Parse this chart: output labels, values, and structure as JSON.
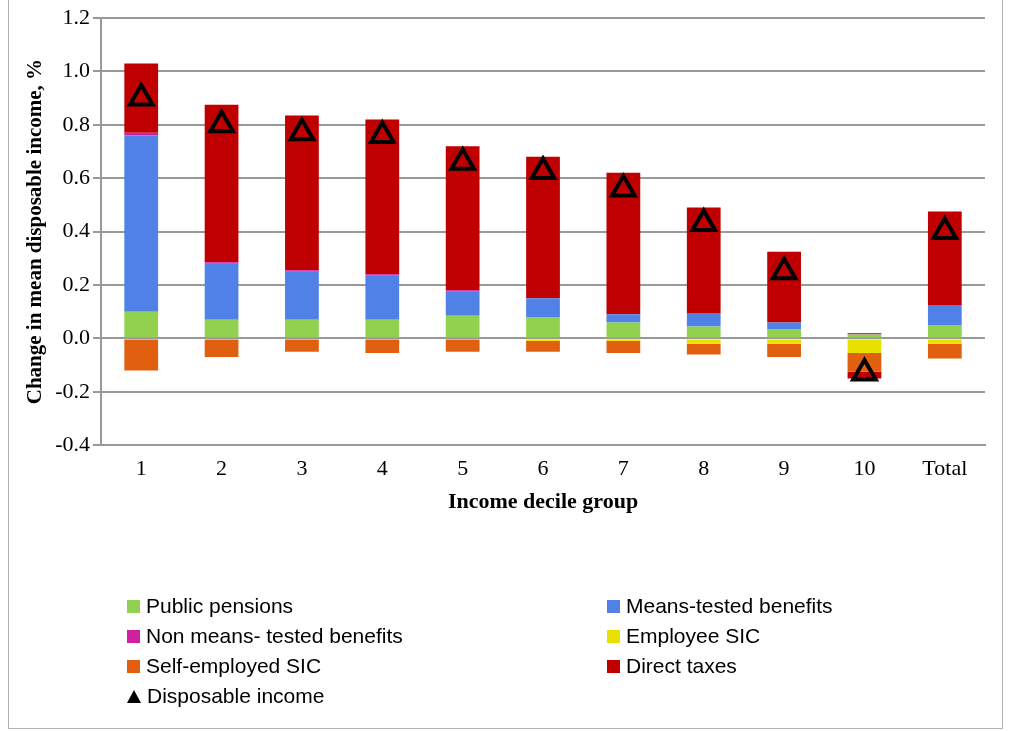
{
  "chart_data": {
    "type": "bar",
    "stacked": true,
    "xlabel": "Income decile group",
    "ylabel": "Change in mean disposable income, %",
    "categories": [
      "1",
      "2",
      "3",
      "4",
      "5",
      "6",
      "7",
      "8",
      "9",
      "10",
      "Total"
    ],
    "ylim": [
      -0.4,
      1.2
    ],
    "yticks": [
      {
        "value": -0.4,
        "label": "-0.4"
      },
      {
        "value": -0.2,
        "label": "-0.2"
      },
      {
        "value": 0,
        "label": "0.0"
      },
      {
        "value": 0.2,
        "label": "0.2"
      },
      {
        "value": 0.4,
        "label": "0.4"
      },
      {
        "value": 0.6,
        "label": "0.6"
      },
      {
        "value": 0.8,
        "label": "0.8"
      },
      {
        "value": 1.0,
        "label": "1.0"
      },
      {
        "value": 1.2,
        "label": "1.2"
      }
    ],
    "grid": "y",
    "legend": "bottom",
    "marker": "triangle",
    "series": [
      {
        "name": "Public pensions",
        "color": "#92d050",
        "values": [
          0.1,
          0.07,
          0.07,
          0.07,
          0.085,
          0.08,
          0.06,
          0.045,
          0.035,
          0.015,
          0.05
        ]
      },
      {
        "name": "Means-tested benefits",
        "color": "#4f81e6",
        "values": [
          0.66,
          0.21,
          0.18,
          0.165,
          0.09,
          0.07,
          0.03,
          0.05,
          0.025,
          0,
          0.075
        ]
      },
      {
        "name": "Non means- tested benefits",
        "color": "#d020a0",
        "values": [
          0.01,
          0.005,
          0.005,
          0.005,
          0.005,
          0,
          0,
          0,
          0,
          0.005,
          0
        ]
      },
      {
        "name": "Employee SIC",
        "color": "#e8e000",
        "values": [
          0,
          0,
          0,
          0,
          0,
          -0.01,
          -0.01,
          -0.02,
          -0.02,
          -0.055,
          -0.02
        ]
      },
      {
        "name": "Self-employed SIC",
        "color": "#e06010",
        "values": [
          -0.12,
          -0.07,
          -0.05,
          -0.055,
          -0.05,
          -0.04,
          -0.045,
          -0.04,
          -0.05,
          -0.07,
          -0.055
        ]
      },
      {
        "name": "Direct taxes",
        "color": "#c00000",
        "values": [
          0.26,
          0.59,
          0.58,
          0.58,
          0.54,
          0.53,
          0.53,
          0.395,
          0.265,
          -0.025,
          0.35
        ]
      },
      {
        "name": "Disposable income",
        "type": "scatter",
        "color": "#000000",
        "x": [
          "1",
          "2",
          "3",
          "4",
          "5",
          "6",
          "7",
          "8",
          "9",
          "10",
          "Total"
        ],
        "values": [
          0.9,
          0.8,
          0.77,
          0.76,
          0.66,
          0.625,
          0.56,
          0.43,
          0.25,
          -0.13,
          0.4
        ]
      }
    ]
  }
}
